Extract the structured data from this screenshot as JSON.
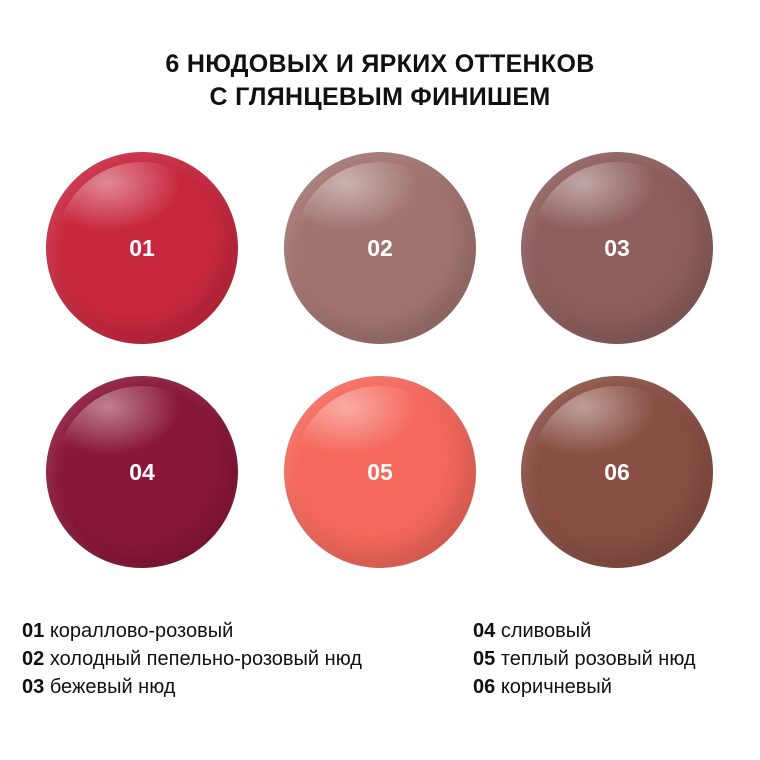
{
  "title": {
    "line1": "6 НЮДОВЫХ И ЯРКИХ ОТТЕНКОВ",
    "line2": "С ГЛЯНЦЕВЫМ ФИНИШЕМ"
  },
  "shades": [
    {
      "number": "01",
      "name": "кораллово-розовый",
      "color": "#c8283f"
    },
    {
      "number": "02",
      "name": "холодный пепельно-розовый нюд",
      "color": "#a27470"
    },
    {
      "number": "03",
      "name": "бежевый нюд",
      "color": "#8e5e5d"
    },
    {
      "number": "04",
      "name": "сливовый",
      "color": "#8a1738"
    },
    {
      "number": "05",
      "name": "теплый розовый нюд",
      "color": "#f5685c"
    },
    {
      "number": "06",
      "name": "коричневый",
      "color": "#8a4f44"
    }
  ]
}
